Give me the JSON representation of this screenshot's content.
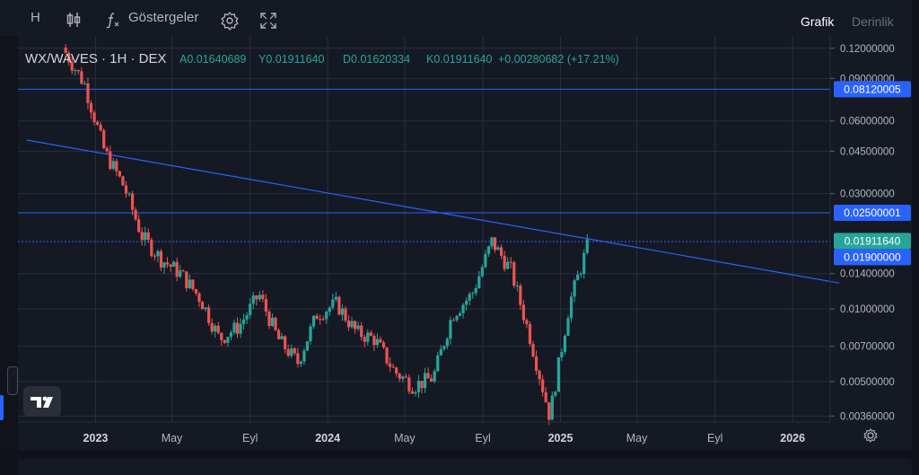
{
  "toolbar": {
    "interval_label": "H",
    "indicators_label": "Göstergeler",
    "icons": [
      "candles-icon",
      "function-icon",
      "gear-icon",
      "fullscreen-icon"
    ],
    "tabs": [
      {
        "label": "Grafik",
        "active": true
      },
      {
        "label": "Derinlik",
        "active": false
      }
    ]
  },
  "legend": {
    "symbol": "WX/WAVES · 1H · DEX",
    "open": "A0.01640689",
    "high": "Y0.01911640",
    "low": "D0.01620334",
    "close": "K0.01911640",
    "change": "+0.00280682 (+17.21%)"
  },
  "price_axis": {
    "ticks": [
      "0.12000000",
      "0.09000000",
      "0.06000000",
      "0.04500000",
      "0.03000000",
      "0.01400000",
      "0.01000000",
      "0.00700000",
      "0.00500000",
      "0.00360000"
    ],
    "labels": [
      {
        "text": "0.08120005",
        "color": "#2962ff"
      },
      {
        "text": "0.02500001",
        "color": "#2962ff"
      },
      {
        "text": "0.01911640",
        "color": "#26a69a"
      },
      {
        "text": "0.01900000",
        "color": "#2962ff"
      }
    ]
  },
  "time_axis": {
    "labels": [
      "2023",
      "May",
      "Eyl",
      "2024",
      "May",
      "Eyl",
      "2025",
      "May",
      "Eyl",
      "2026"
    ]
  },
  "horizontal_lines": [
    0.08120005,
    0.02500001,
    0.019
  ],
  "trend_line": {
    "from": {
      "date": "2022-09",
      "price": 0.05
    },
    "to": {
      "date": "2026-03",
      "price": 0.0128
    }
  },
  "colors": {
    "up": "#26a69a",
    "down": "#ef5350",
    "line": "#2962ff",
    "grid": "#2a2e39",
    "bg": "#151924"
  },
  "chart_data": {
    "type": "candlestick",
    "scale": "log",
    "ylim": [
      0.0034,
      0.135
    ],
    "x": [
      "2022-11",
      "2022-12",
      "2023-01",
      "2023-02",
      "2023-03",
      "2023-04",
      "2023-05",
      "2023-06",
      "2023-07",
      "2023-08",
      "2023-09",
      "2023-10",
      "2023-11",
      "2023-12",
      "2024-01",
      "2024-02",
      "2024-03",
      "2024-04",
      "2024-05",
      "2024-06",
      "2024-07",
      "2024-08",
      "2024-09",
      "2024-10",
      "2024-11",
      "2024-12",
      "2025-01",
      "2025-02"
    ],
    "close": [
      0.115,
      0.085,
      0.045,
      0.032,
      0.02,
      0.016,
      0.014,
      0.011,
      0.0075,
      0.0085,
      0.0115,
      0.0075,
      0.006,
      0.0095,
      0.0105,
      0.008,
      0.0075,
      0.0055,
      0.0048,
      0.0052,
      0.0095,
      0.0115,
      0.019,
      0.0145,
      0.0075,
      0.0036,
      0.0105,
      0.0191
    ]
  }
}
